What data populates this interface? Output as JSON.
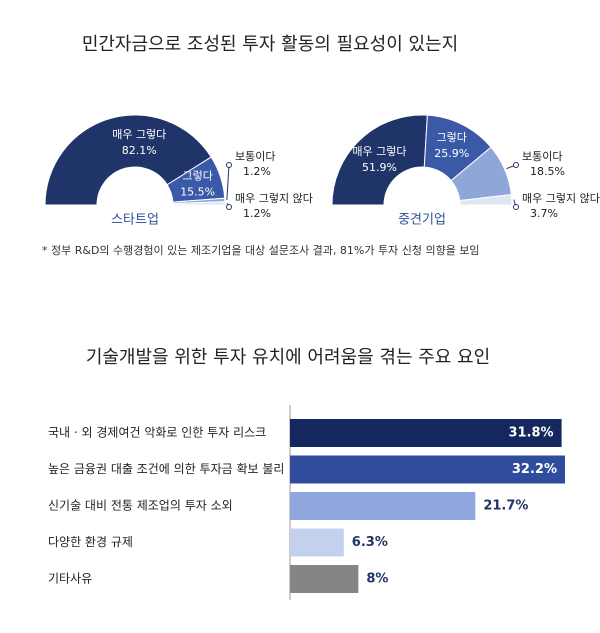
{
  "chart_data": [
    {
      "type": "pie",
      "title": "민간자금으로 조성된 투자 활동의 필요성이 있는지",
      "name": "스타트업",
      "categories": [
        "매우 그렇다",
        "그렇다",
        "보통이다",
        "매우 그렇지 않다"
      ],
      "values": [
        82.1,
        15.5,
        1.2,
        1.2
      ],
      "value_labels": [
        "82.1%",
        "15.5%",
        "1.2%",
        "1.2%"
      ],
      "colors": [
        "#1f3468",
        "#3a5aa8",
        "#8ea6d8",
        "#dfe6f3"
      ]
    },
    {
      "type": "pie",
      "name": "중견기업",
      "categories": [
        "매우 그렇다",
        "그렇다",
        "보통이다",
        "매우 그렇지 않다"
      ],
      "values": [
        51.9,
        25.9,
        18.5,
        3.7
      ],
      "value_labels": [
        "51.9%",
        "25.9%",
        "18.5%",
        "3.7%"
      ],
      "colors": [
        "#1f3468",
        "#3a5aa8",
        "#8ea6d8",
        "#dfe6f3"
      ],
      "annotation": "* 정부 R&D의 수행경험이 있는 제조기업을 대상 설문조사 결과, 81%가 투자 신청 의향을 보임"
    },
    {
      "type": "hbar",
      "title": "기술개발을 위한 투자 유치에 어려움을 겪는 주요 요인",
      "categories": [
        "국내 · 외 경제여건 악화로 인한 투자 리스크",
        "높은 금융권 대출 조건에 의한 투자금 확보 불리",
        "신기술 대비 전통 제조업의 투자 소외",
        "다양한 환경 규제",
        "기타사유"
      ],
      "values": [
        31.8,
        32.2,
        21.7,
        6.3,
        8
      ],
      "value_labels": [
        "31.8%",
        "32.2%",
        "21.7%",
        "6.3%",
        "8%"
      ],
      "colors": [
        "#14275e",
        "#2f4d9c",
        "#8fa7dd",
        "#c3d0ee",
        "#858585"
      ]
    }
  ]
}
